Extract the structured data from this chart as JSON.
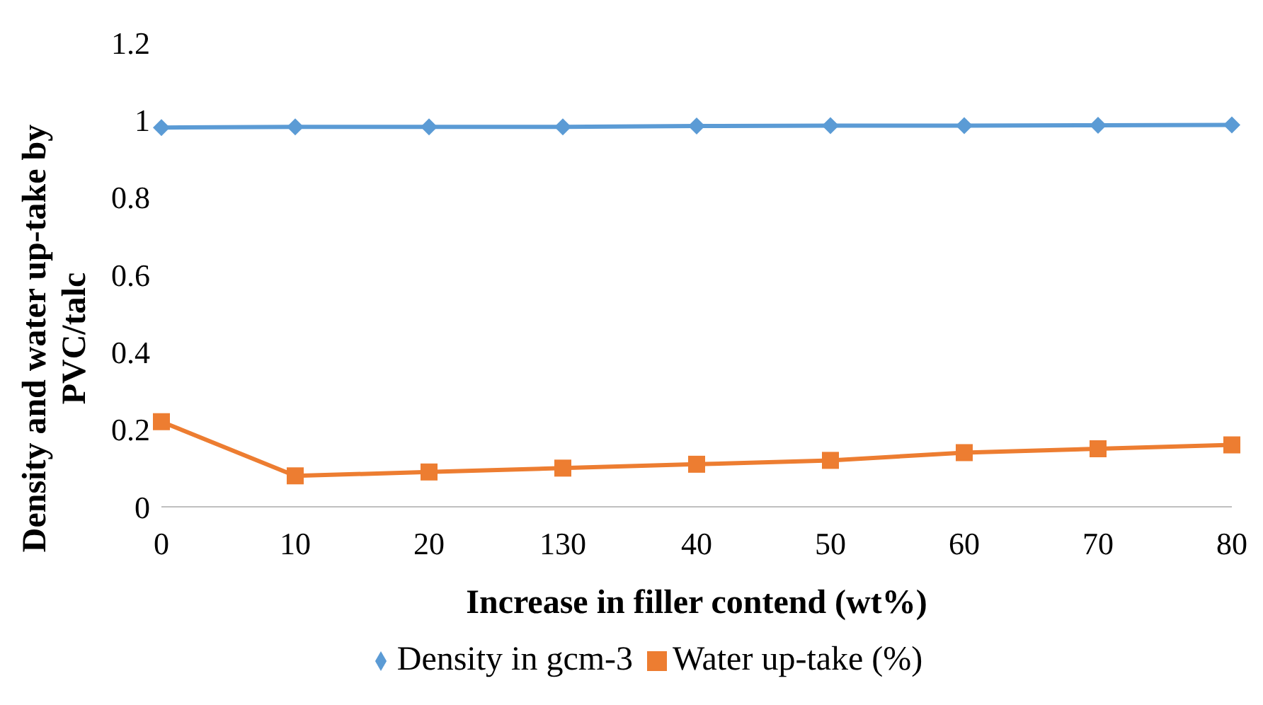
{
  "chart_data": {
    "type": "line",
    "xlabel": "Increase in filler contend (wt%)",
    "ylabel": "Density and water up-take by PVC/talc",
    "categories": [
      "0",
      "10",
      "20",
      "130",
      "40",
      "50",
      "60",
      "70",
      "80"
    ],
    "series": [
      {
        "name": "Density in gcm-3",
        "color": "#5b9bd5",
        "marker": "diamond",
        "values": [
          0.98,
          0.982,
          0.982,
          0.982,
          0.984,
          0.985,
          0.985,
          0.986,
          0.987
        ]
      },
      {
        "name": "Water up-take (%)",
        "color": "#ed7d31",
        "marker": "square",
        "values": [
          0.22,
          0.08,
          0.09,
          0.1,
          0.11,
          0.12,
          0.14,
          0.15,
          0.16
        ]
      }
    ],
    "ylim": [
      0,
      1.2
    ],
    "yticks": [
      0,
      0.2,
      0.4,
      0.6,
      0.8,
      1,
      1.2
    ],
    "grid": false,
    "legend": "bottom"
  }
}
